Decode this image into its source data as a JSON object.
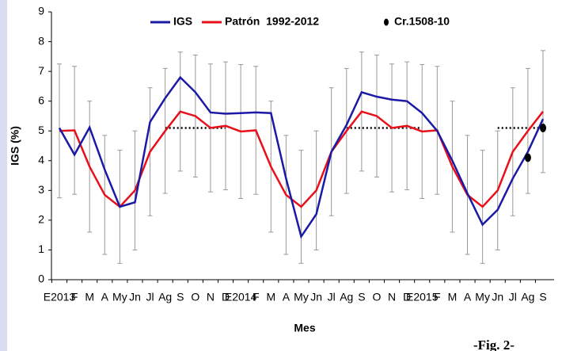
{
  "chart_data": {
    "type": "line",
    "x_label": "Mes",
    "y_label": "IGS (%)",
    "caption": "-Fig. 2-",
    "categories": [
      "E2013",
      "F",
      "M",
      "A",
      "My",
      "Jn",
      "Jl",
      "Ag",
      "S",
      "O",
      "N",
      "D",
      "E2014",
      "F",
      "M",
      "A",
      "My",
      "Jn",
      "Jl",
      "Ag",
      "S",
      "O",
      "N",
      "D",
      "E2015",
      "F",
      "M",
      "A",
      "My",
      "Jn",
      "Jl",
      "Ag",
      "S"
    ],
    "ylim": [
      0,
      9
    ],
    "yticks": [
      0,
      1,
      2,
      3,
      4,
      5,
      6,
      7,
      8,
      9
    ],
    "series": [
      {
        "name": "IGS",
        "type": "line",
        "color": "#1a1aa6",
        "values": [
          5.1,
          4.2,
          5.12,
          3.7,
          2.45,
          2.6,
          5.3,
          6.1,
          6.8,
          6.3,
          5.62,
          5.58,
          5.6,
          5.62,
          5.6,
          3.4,
          1.45,
          2.2,
          4.3,
          5.2,
          6.3,
          6.15,
          6.05,
          6.0,
          5.6,
          5.0,
          4.0,
          2.9,
          1.85,
          2.35,
          3.4,
          4.3,
          5.4
        ]
      },
      {
        "name": "Patrón  1992-2012",
        "type": "line",
        "color": "#e8101a",
        "values": [
          5.0,
          5.02,
          3.8,
          2.85,
          2.45,
          3.0,
          4.3,
          5.0,
          5.65,
          5.5,
          5.1,
          5.17,
          4.98,
          5.02,
          3.8,
          2.85,
          2.45,
          3.0,
          4.3,
          5.0,
          5.65,
          5.5,
          5.1,
          5.17,
          4.98,
          5.02,
          3.8,
          2.85,
          2.45,
          3.0,
          4.3,
          5.0,
          5.65
        ],
        "errors": [
          2.25,
          2.15,
          2.2,
          2.0,
          1.9,
          2.0,
          2.15,
          2.1,
          2.0,
          2.05,
          2.15,
          2.15,
          2.25,
          2.15,
          2.2,
          2.0,
          1.9,
          2.0,
          2.15,
          2.1,
          2.0,
          2.05,
          2.15,
          2.15,
          2.25,
          2.15,
          2.2,
          2.0,
          1.9,
          2.0,
          2.15,
          2.1,
          2.05
        ],
        "error_color": "#999999"
      },
      {
        "name": "Cr.1508-10",
        "type": "scatter",
        "color": "#000000",
        "values": [
          null,
          null,
          null,
          null,
          null,
          null,
          null,
          null,
          null,
          null,
          null,
          null,
          null,
          null,
          null,
          null,
          null,
          null,
          null,
          null,
          null,
          null,
          null,
          null,
          null,
          null,
          null,
          null,
          null,
          null,
          null,
          4.1,
          5.1
        ]
      }
    ],
    "reference": {
      "type": "dotted",
      "color": "#000000",
      "values": [
        null,
        null,
        null,
        null,
        null,
        null,
        null,
        5.1,
        5.1,
        5.1,
        5.1,
        5.1,
        null,
        null,
        null,
        null,
        null,
        null,
        null,
        5.1,
        5.1,
        5.1,
        5.1,
        5.1,
        5.1,
        null,
        null,
        null,
        null,
        5.1,
        5.1,
        5.1,
        5.1
      ]
    }
  }
}
